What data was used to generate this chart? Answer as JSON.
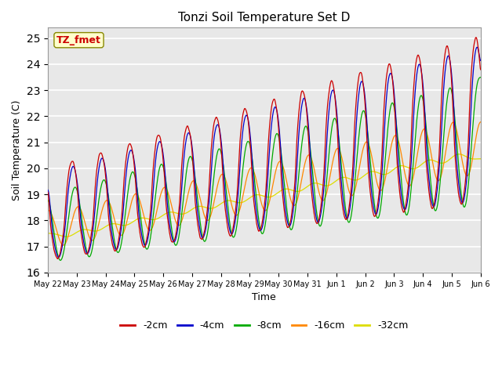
{
  "title": "Tonzi Soil Temperature Set D",
  "xlabel": "Time",
  "ylabel": "Soil Temperature (C)",
  "ylim": [
    16.0,
    25.4
  ],
  "yticks": [
    16.0,
    17.0,
    18.0,
    19.0,
    20.0,
    21.0,
    22.0,
    23.0,
    24.0,
    25.0
  ],
  "xtick_labels": [
    "May 22",
    "May 23",
    "May 24",
    "May 25",
    "May 26",
    "May 27",
    "May 28",
    "May 29",
    "May 30",
    "May 31",
    "Jun 1",
    "Jun 2",
    "Jun 3",
    "Jun 4",
    "Jun 5",
    "Jun 6"
  ],
  "series_colors": [
    "#cc0000",
    "#0000cc",
    "#00aa00",
    "#ff8800",
    "#dddd00"
  ],
  "series_labels": [
    "-2cm",
    "-4cm",
    "-8cm",
    "-16cm",
    "-32cm"
  ],
  "legend_label": "TZ_fmet",
  "plot_bg_color": "#e8e8e8",
  "n_points": 1440,
  "days": 15
}
